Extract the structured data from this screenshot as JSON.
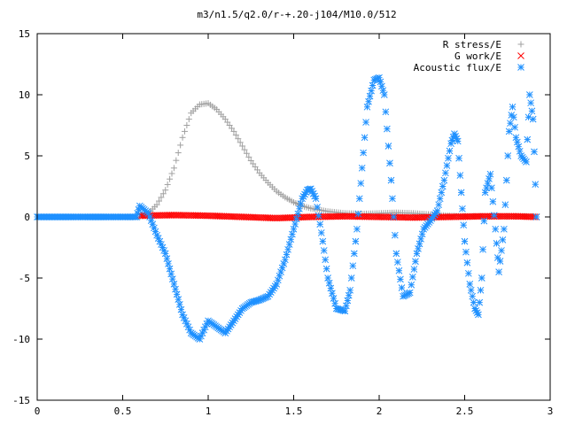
{
  "chart_data": {
    "type": "scatter",
    "title": "m3/n1.5/q2.0/r-+.20-j104/M10.0/512",
    "xlabel": "",
    "ylabel": "",
    "xlim": [
      0,
      3
    ],
    "ylim": [
      -15,
      15
    ],
    "xticks": [
      "0",
      "0.5",
      "1",
      "1.5",
      "2",
      "2.5",
      "3"
    ],
    "yticks": [
      "15",
      "10",
      "5",
      "0",
      "-5",
      "-10",
      "-15"
    ],
    "grid": false,
    "legend_position": "top-right",
    "series": [
      {
        "name": "R stress/E",
        "marker": "+",
        "color": "#a0a0a0",
        "x": [
          0.6,
          0.65,
          0.7,
          0.75,
          0.8,
          0.85,
          0.9,
          0.95,
          1.0,
          1.05,
          1.1,
          1.15,
          1.2,
          1.25,
          1.3,
          1.35,
          1.4,
          1.45,
          1.5,
          1.55,
          1.6,
          1.7,
          1.8,
          1.9,
          2.0,
          2.1,
          2.2,
          2.3,
          2.4,
          2.5,
          2.6,
          2.7,
          2.8,
          2.9
        ],
        "y": [
          0.0,
          0.3,
          1.0,
          2.2,
          4.0,
          6.5,
          8.5,
          9.2,
          9.3,
          8.8,
          8.0,
          7.0,
          5.8,
          4.6,
          3.6,
          2.8,
          2.1,
          1.6,
          1.2,
          0.9,
          0.7,
          0.45,
          0.3,
          0.25,
          0.3,
          0.35,
          0.3,
          0.2,
          0.1,
          0.05,
          0.05,
          0.05,
          0.05,
          0.05
        ]
      },
      {
        "name": "G work/E",
        "marker": "x",
        "color": "#ff0000",
        "x": [
          0.6,
          0.8,
          1.0,
          1.2,
          1.4,
          1.6,
          1.8,
          2.0,
          2.2,
          2.4,
          2.6,
          2.8,
          2.92
        ],
        "y": [
          0.1,
          0.15,
          0.1,
          0.0,
          -0.1,
          0.0,
          0.05,
          0.0,
          -0.05,
          0.0,
          0.05,
          0.05,
          0.0
        ]
      },
      {
        "name": "Acoustic flux/E",
        "marker": "*",
        "color": "#1e90ff",
        "x": [
          0.0,
          0.1,
          0.2,
          0.3,
          0.4,
          0.5,
          0.58,
          0.6,
          0.65,
          0.7,
          0.75,
          0.8,
          0.85,
          0.9,
          0.95,
          1.0,
          1.05,
          1.1,
          1.15,
          1.2,
          1.25,
          1.3,
          1.35,
          1.4,
          1.45,
          1.5,
          1.55,
          1.58,
          1.6,
          1.63,
          1.67,
          1.7,
          1.75,
          1.8,
          1.83,
          1.87,
          1.9,
          1.93,
          1.97,
          2.0,
          2.03,
          2.07,
          2.1,
          2.14,
          2.18,
          2.22,
          2.26,
          2.3,
          2.34,
          2.38,
          2.42,
          2.44,
          2.46,
          2.48,
          2.5,
          2.53,
          2.56,
          2.58,
          2.6,
          2.62,
          2.65,
          2.68,
          2.7,
          2.73,
          2.76,
          2.78,
          2.8,
          2.83,
          2.86,
          2.88,
          2.9,
          2.92
        ],
        "y": [
          0.0,
          0.0,
          0.0,
          0.0,
          0.0,
          0.0,
          0.0,
          0.9,
          0.3,
          -1.5,
          -3.0,
          -5.5,
          -8.0,
          -9.5,
          -10.0,
          -8.5,
          -9.0,
          -9.5,
          -8.5,
          -7.5,
          -7.0,
          -6.8,
          -6.5,
          -5.5,
          -3.5,
          -1.0,
          1.5,
          2.2,
          2.3,
          1.5,
          -2.0,
          -5.0,
          -7.5,
          -7.7,
          -6.0,
          -1.0,
          4.0,
          9.0,
          11.2,
          11.4,
          10.0,
          3.0,
          -3.0,
          -6.5,
          -6.2,
          -3.0,
          -1.0,
          -0.3,
          0.5,
          3.0,
          6.0,
          6.8,
          6.2,
          2.0,
          -2.0,
          -5.5,
          -7.5,
          -8.0,
          -5.0,
          2.0,
          3.5,
          -1.0,
          -4.5,
          -1.0,
          7.0,
          9.0,
          6.5,
          5.0,
          4.5,
          10.0,
          8.0,
          0.0
        ]
      }
    ]
  }
}
